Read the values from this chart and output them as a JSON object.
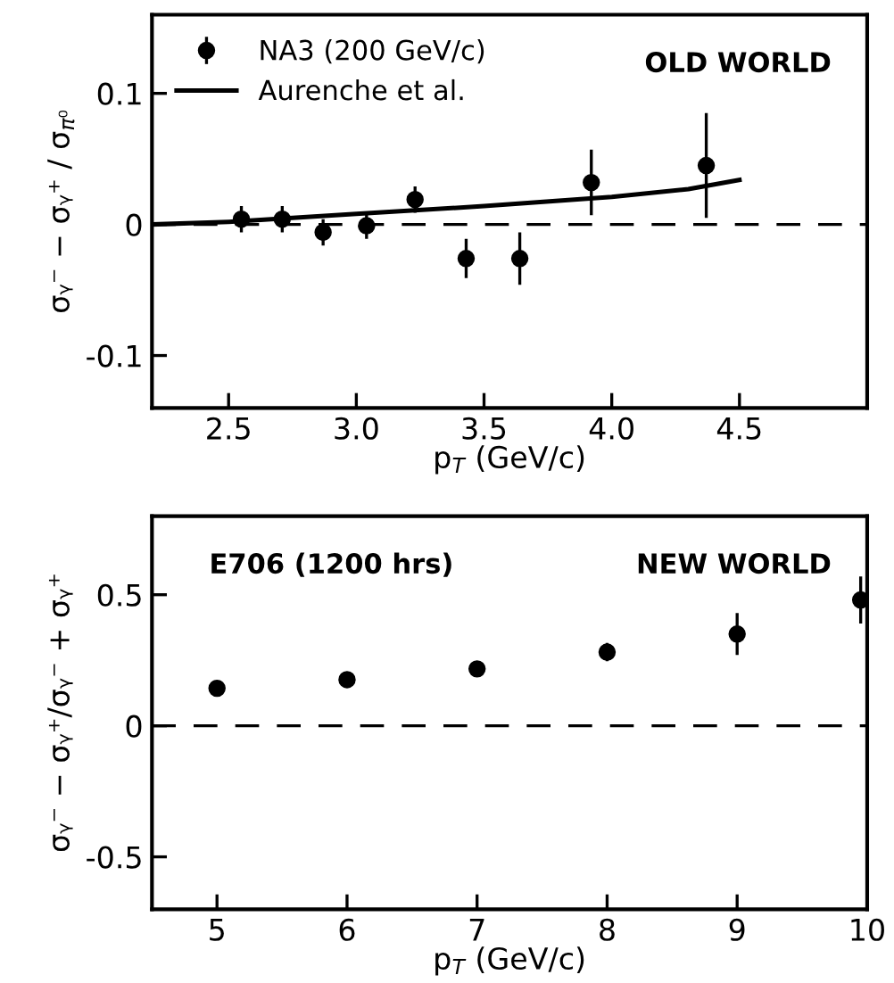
{
  "chart_data": [
    {
      "type": "scatter",
      "xlabel": "p$_{T}$ (GeV/c)",
      "ylabel": "σᵧ⁻ − σᵧ⁺ / σ$_{π⁰}$",
      "xlim": [
        2.2,
        5.0
      ],
      "ylim": [
        -0.14,
        0.16
      ],
      "xticks": [
        2.5,
        {
          "value": 3,
          "label": "3.0"
        },
        3.5,
        {
          "value": 4,
          "label": "4.0"
        },
        4.5
      ],
      "yticks": [
        -0.1,
        0,
        0.1
      ],
      "legend": "top left",
      "grid": false,
      "series": [
        {
          "name": "NA3 (200 GeV/c)",
          "marker": "circle",
          "color": "#000000",
          "x": [
            2.55,
            2.71,
            2.87,
            3.04,
            3.23,
            3.43,
            3.64,
            3.92,
            4.37
          ],
          "values": [
            0.004,
            0.004,
            -0.006,
            -0.001,
            0.019,
            -0.026,
            -0.026,
            0.032,
            0.045
          ],
          "errors": [
            0.01,
            0.01,
            0.01,
            0.01,
            0.01,
            0.015,
            0.02,
            0.025,
            0.04
          ]
        },
        {
          "name": "Aurenche et al.",
          "type": "line",
          "line_style": "solid",
          "color": "#000000",
          "x": [
            2.2,
            2.5,
            3.0,
            3.5,
            4.0,
            4.3,
            4.5
          ],
          "values": [
            0,
            0.002,
            0.008,
            0.014,
            0.021,
            0.027,
            0.034
          ]
        }
      ],
      "ref_lines": [
        {
          "axis": "y",
          "value": 0,
          "line_style": "dashed",
          "color": "#000000"
        }
      ],
      "annotations": [
        "OLD WORLD"
      ]
    },
    {
      "type": "scatter",
      "xlabel": "p$_{T}$ (GeV/c)",
      "ylabel": "σᵧ⁻ − σᵧ⁺/σᵧ⁻ + σᵧ⁺",
      "xlim": [
        4.5,
        10
      ],
      "ylim": [
        -0.7,
        0.8
      ],
      "xticks": [
        5,
        6,
        7,
        8,
        9,
        10
      ],
      "yticks": [
        -0.5,
        0,
        0.5
      ],
      "grid": false,
      "series": [
        {
          "marker": "circle",
          "color": "#000000",
          "x": [
            5,
            6,
            7,
            8,
            9,
            9.95
          ],
          "values": [
            0.143,
            0.176,
            0.217,
            0.281,
            0.35,
            0.48
          ],
          "errors": [
            null,
            null,
            null,
            0.035,
            0.08,
            0.09
          ]
        }
      ],
      "ref_lines": [
        {
          "axis": "y",
          "value": 0,
          "line_style": "dashed",
          "color": "#000000"
        }
      ],
      "annotations": [
        "E706 (1200 hrs)",
        "NEW WORLD"
      ]
    }
  ]
}
